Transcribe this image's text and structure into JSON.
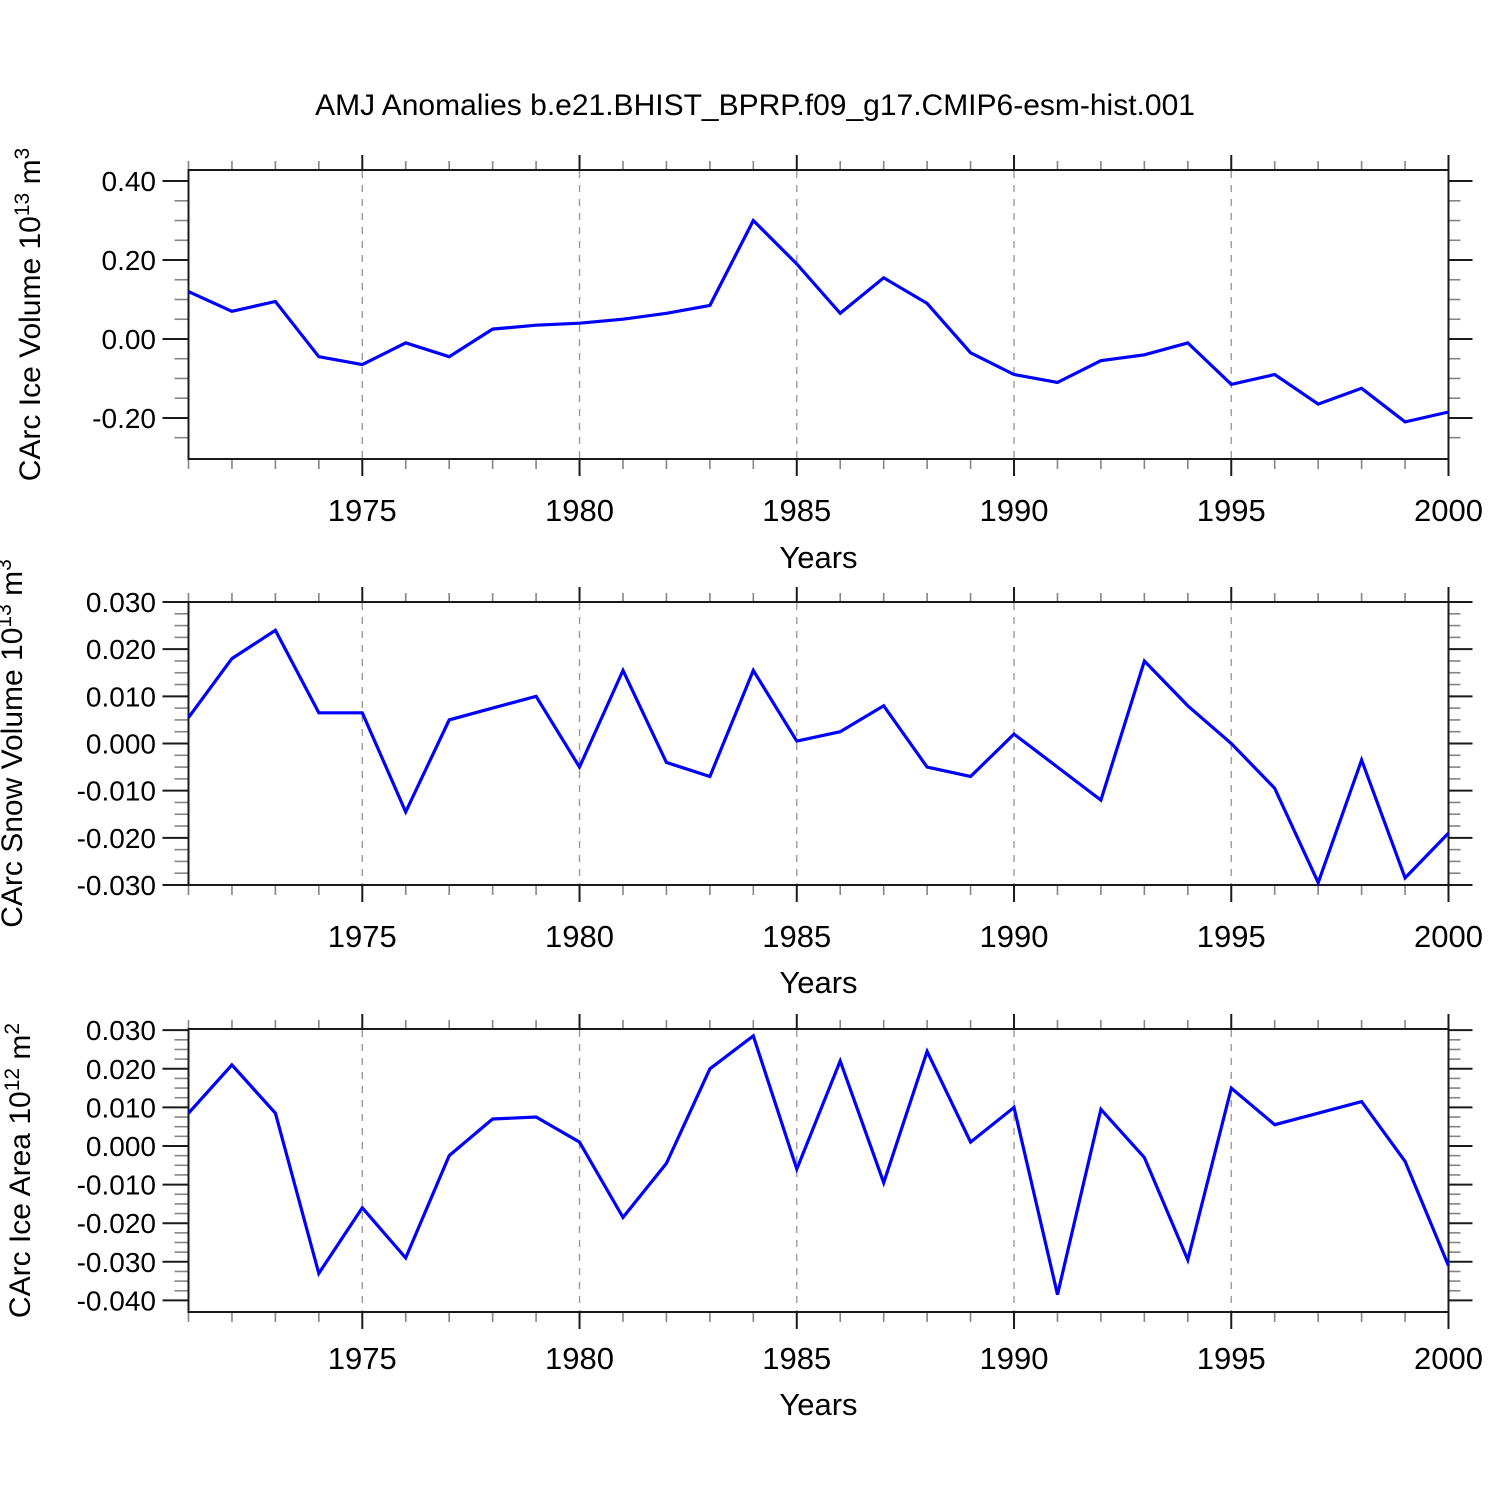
{
  "title": "AMJ Anomalies b.e21.BHIST_BPRP.f09_g17.CMIP6-esm-hist.001",
  "line_color": "#0000ff",
  "grid_color": "#9c9c9c",
  "axis_color": "#1a1a1a",
  "minor_tick_color": "#858585",
  "years": [
    1971,
    1972,
    1973,
    1974,
    1975,
    1976,
    1977,
    1978,
    1979,
    1980,
    1981,
    1982,
    1983,
    1984,
    1985,
    1986,
    1987,
    1988,
    1989,
    1990,
    1991,
    1992,
    1993,
    1994,
    1995,
    1996,
    1997,
    1998,
    1999,
    2000
  ],
  "x_axis": {
    "label": "Years",
    "tick_labels": [
      "1975",
      "1980",
      "1985",
      "1990",
      "1995",
      "2000"
    ],
    "tick_years": [
      1975,
      1980,
      1985,
      1990,
      1995,
      2000
    ],
    "grid_years": [
      1975,
      1980,
      1985,
      1990,
      1995
    ],
    "range": [
      1971,
      2000
    ],
    "minor_step_years": 1
  },
  "chart_data": [
    {
      "type": "line",
      "series_name": "CArc Ice Volume anomaly",
      "ylabel": "CArc Ice Volume 10^13 m^3",
      "ylabel_parts": [
        {
          "t": "CArc Ice Volume 10",
          "sup": false
        },
        {
          "t": "13",
          "sup": true
        },
        {
          "t": " m",
          "sup": false
        },
        {
          "t": "3",
          "sup": true
        }
      ],
      "ytick_labels": [
        "0.40",
        "0.20",
        "0.00",
        "-0.20"
      ],
      "ytick_values": [
        0.4,
        0.2,
        0.0,
        -0.2
      ],
      "minor_step": 0.05,
      "ylim": [
        -0.304,
        0.428
      ],
      "values": [
        0.12,
        0.07,
        0.095,
        -0.045,
        -0.065,
        -0.01,
        -0.045,
        0.025,
        0.035,
        0.04,
        0.05,
        0.065,
        0.085,
        0.3,
        0.19,
        0.065,
        0.155,
        0.09,
        -0.035,
        -0.09,
        -0.11,
        -0.055,
        -0.04,
        -0.01,
        -0.115,
        -0.09,
        -0.165,
        -0.125,
        -0.21,
        -0.185
      ]
    },
    {
      "type": "line",
      "series_name": "CArc Snow Volume anomaly",
      "ylabel": "CArc Snow Volume 10^13 m^3",
      "ylabel_parts": [
        {
          "t": "CArc Snow Volume 10",
          "sup": false
        },
        {
          "t": "13",
          "sup": true
        },
        {
          "t": " m",
          "sup": false
        },
        {
          "t": "3",
          "sup": true
        }
      ],
      "ytick_labels": [
        "0.030",
        "0.020",
        "0.010",
        "0.000",
        "-0.010",
        "-0.020",
        "-0.030"
      ],
      "ytick_values": [
        0.03,
        0.02,
        0.01,
        0.0,
        -0.01,
        -0.02,
        -0.03
      ],
      "minor_step": 0.0025,
      "ylim": [
        -0.03,
        0.03
      ],
      "values": [
        0.0055,
        0.018,
        0.024,
        0.0065,
        0.0065,
        -0.0145,
        0.005,
        0.0075,
        0.01,
        -0.005,
        0.0155,
        -0.004,
        -0.007,
        0.0155,
        0.0005,
        0.0025,
        0.008,
        -0.005,
        -0.007,
        0.002,
        -0.005,
        -0.012,
        0.0175,
        0.008,
        0.0,
        -0.0095,
        -0.0295,
        -0.0035,
        -0.0285,
        -0.019
      ]
    },
    {
      "type": "line",
      "series_name": "CArc Ice Area anomaly",
      "ylabel": "CArc Ice Area 10^12 m^2",
      "ylabel_parts": [
        {
          "t": "CArc Ice Area 10",
          "sup": false
        },
        {
          "t": "12",
          "sup": true
        },
        {
          "t": " m",
          "sup": false
        },
        {
          "t": "2",
          "sup": true
        }
      ],
      "ytick_labels": [
        "0.030",
        "0.020",
        "0.010",
        "0.000",
        "-0.010",
        "-0.020",
        "-0.030",
        "-0.040"
      ],
      "ytick_values": [
        0.03,
        0.02,
        0.01,
        0.0,
        -0.01,
        -0.02,
        -0.03,
        -0.04
      ],
      "minor_step": 0.0025,
      "ylim": [
        -0.043,
        0.0303
      ],
      "values": [
        0.0085,
        0.021,
        0.0085,
        -0.033,
        -0.016,
        -0.029,
        -0.0025,
        0.007,
        0.0075,
        0.001,
        -0.0185,
        -0.0045,
        0.02,
        0.0285,
        -0.006,
        0.022,
        -0.0095,
        0.0245,
        0.001,
        0.01,
        -0.0385,
        0.0095,
        -0.003,
        -0.0295,
        0.015,
        0.0055,
        0.0085,
        0.0115,
        -0.004,
        -0.031
      ]
    }
  ]
}
